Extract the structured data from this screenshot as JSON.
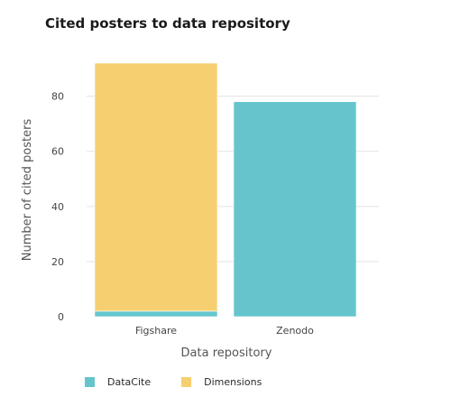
{
  "chart_data": {
    "type": "bar",
    "stacked": true,
    "title": "Cited posters to data repository",
    "xlabel": "Data repository",
    "ylabel": "Number of cited posters",
    "categories": [
      "Figshare",
      "Zenodo"
    ],
    "series": [
      {
        "name": "DataCite",
        "color": "#66c5cc",
        "values": [
          2,
          78
        ]
      },
      {
        "name": "Dimensions",
        "color": "#f6cf71",
        "values": [
          90,
          0
        ]
      }
    ],
    "yticks": [
      0,
      20,
      40,
      60,
      80
    ],
    "ylim": [
      0,
      92
    ],
    "grid": true,
    "legend": "bottom-left"
  }
}
